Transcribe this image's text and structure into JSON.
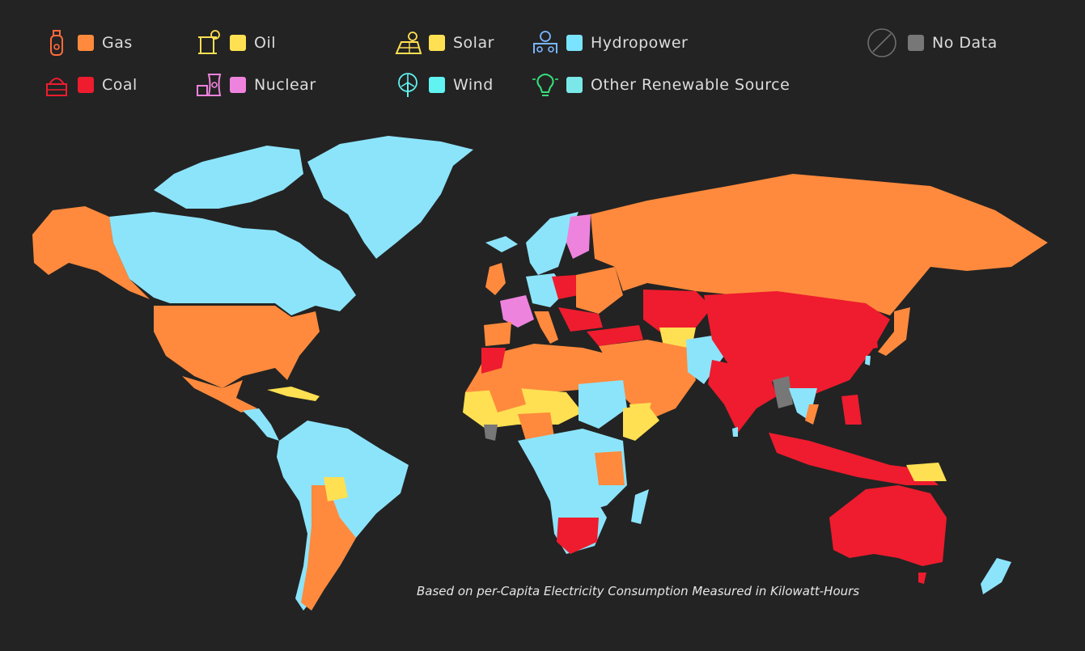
{
  "legend": {
    "gas": {
      "label": "Gas",
      "color": "#ff8a3d",
      "icon": "gas-cylinder-icon"
    },
    "coal": {
      "label": "Coal",
      "color": "#ee1c2e",
      "icon": "coal-mine-icon"
    },
    "oil": {
      "label": "Oil",
      "color": "#ffe052",
      "icon": "oil-pump-icon"
    },
    "nuclear": {
      "label": "Nuclear",
      "color": "#ee83de",
      "icon": "nuclear-plant-icon"
    },
    "solar": {
      "label": "Solar",
      "color": "#ffe052",
      "icon": "solar-panel-icon"
    },
    "wind": {
      "label": "Wind",
      "color": "#61f2f2",
      "icon": "wind-turbine-icon"
    },
    "hydro": {
      "label": "Hydropower",
      "color": "#7ae3ff",
      "icon": "hydropower-icon"
    },
    "other": {
      "label": "Other Renewable Source",
      "color": "#7ae8e8",
      "icon": "lightbulb-icon"
    },
    "nodata": {
      "label": "No Data",
      "color": "#777777",
      "icon": "no-data-icon"
    }
  },
  "colors": {
    "background": "#232323",
    "hydro_map": "#8ce4fb"
  },
  "caption": "Based on per-Capita Electricity Consumption Measured in Kilowatt-Hours"
}
